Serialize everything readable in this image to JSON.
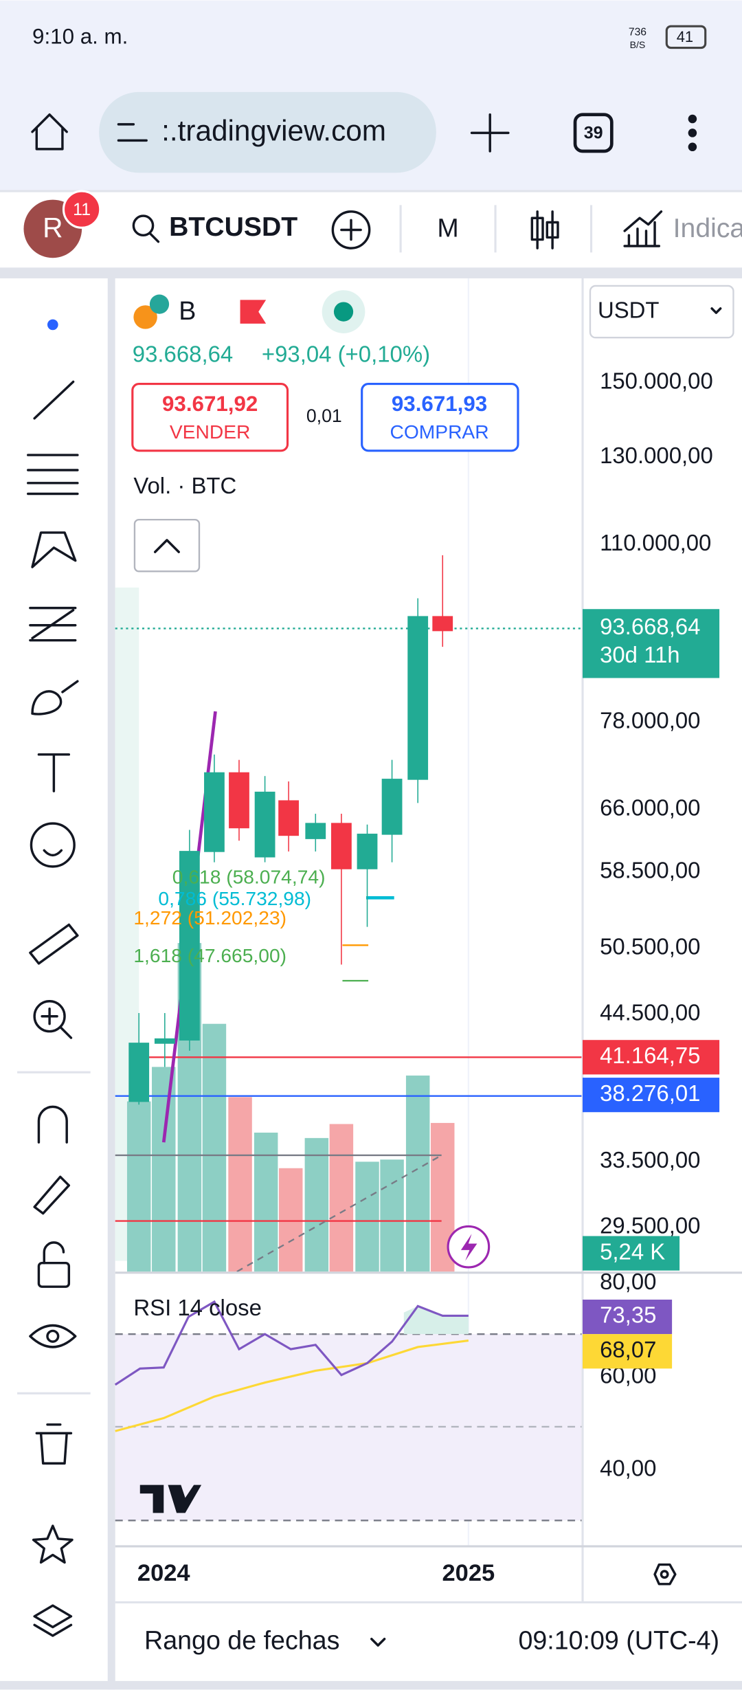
{
  "status_bar": {
    "time": "9:10 a. m.",
    "net_speed": "736",
    "net_unit": "B/S",
    "battery": "41"
  },
  "browser": {
    "url": ":.tradingview.com",
    "tabs": "39"
  },
  "toolbar": {
    "avatar": "R",
    "badge": "11",
    "symbol": "BTCUSDT",
    "interval": "M",
    "indicators": "Indica"
  },
  "legend": {
    "symbol": "B",
    "price": "93.668,64",
    "change": "+93,04 (+0,10%)",
    "sell_price": "93.671,92",
    "sell_label": "VENDER",
    "spread": "0,01",
    "buy_price": "93.671,93",
    "buy_label": "COMPRAR",
    "volume": "Vol. · BTC"
  },
  "currency": "USDT",
  "price_axis": [
    "150.000,00",
    "130.000,00",
    "110.000,00",
    "78.000,00",
    "66.000,00",
    "58.500,00",
    "50.500,00",
    "44.500,00",
    "33.500,00",
    "29.500,00"
  ],
  "price_tags": {
    "last": "93.668,64",
    "countdown": "30d 11h",
    "red_line": "41.164,75",
    "blue_line": "38.276,01",
    "volume": "5,24 K"
  },
  "fib_labels": [
    "0,618 (58.074,74)",
    "0,786 (55.732,98)",
    "1,272 (51.202,23)",
    "1,618 (47.665,00)"
  ],
  "rsi": {
    "title": "RSI 14 close",
    "axis": [
      "80,00",
      "60,00",
      "40,00"
    ],
    "rsi_tag": "73,35",
    "ma_tag": "68,07"
  },
  "time_axis": [
    "2024",
    "2025"
  ],
  "footer": {
    "range": "Rango de fechas",
    "clock": "09:10:09 (UTC-4)"
  }
}
